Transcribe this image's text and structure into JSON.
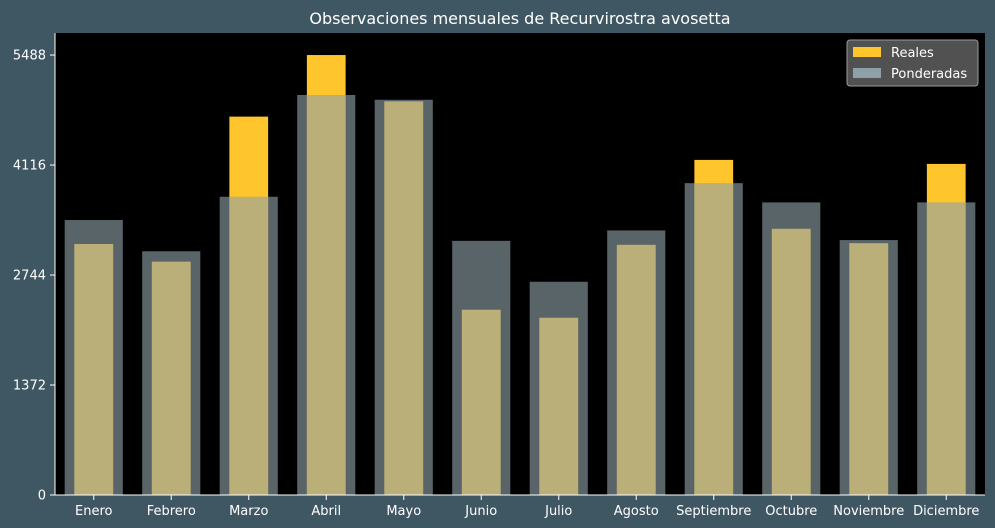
{
  "chart_data": {
    "type": "bar",
    "title": "Observaciones mensuales de Recurvirostra avosetta",
    "xlabel": "",
    "ylabel": "",
    "categories": [
      "Enero",
      "Febrero",
      "Marzo",
      "Abril",
      "Mayo",
      "Junio",
      "Julio",
      "Agosto",
      "Septiembre",
      "Octubre",
      "Noviembre",
      "Diciembre"
    ],
    "series": [
      {
        "name": "Reales",
        "color": "#ffc52c",
        "values": [
          3130,
          2910,
          4720,
          5488,
          4910,
          2310,
          2210,
          3120,
          4180,
          3320,
          3140,
          4130
        ]
      },
      {
        "name": "Ponderadas",
        "color": "#8fa1a8",
        "values": [
          3430,
          3040,
          3720,
          4990,
          4930,
          3170,
          2660,
          3300,
          3890,
          3650,
          3180,
          3650
        ]
      }
    ],
    "ylim": [
      0,
      5763
    ],
    "yticks": [
      0,
      1372,
      2744,
      4116,
      5488
    ],
    "legend": "top-right",
    "grid": false,
    "colors": {
      "page_background": "#3f5663",
      "plot_background": "#000000",
      "text": "#ffffff"
    }
  }
}
